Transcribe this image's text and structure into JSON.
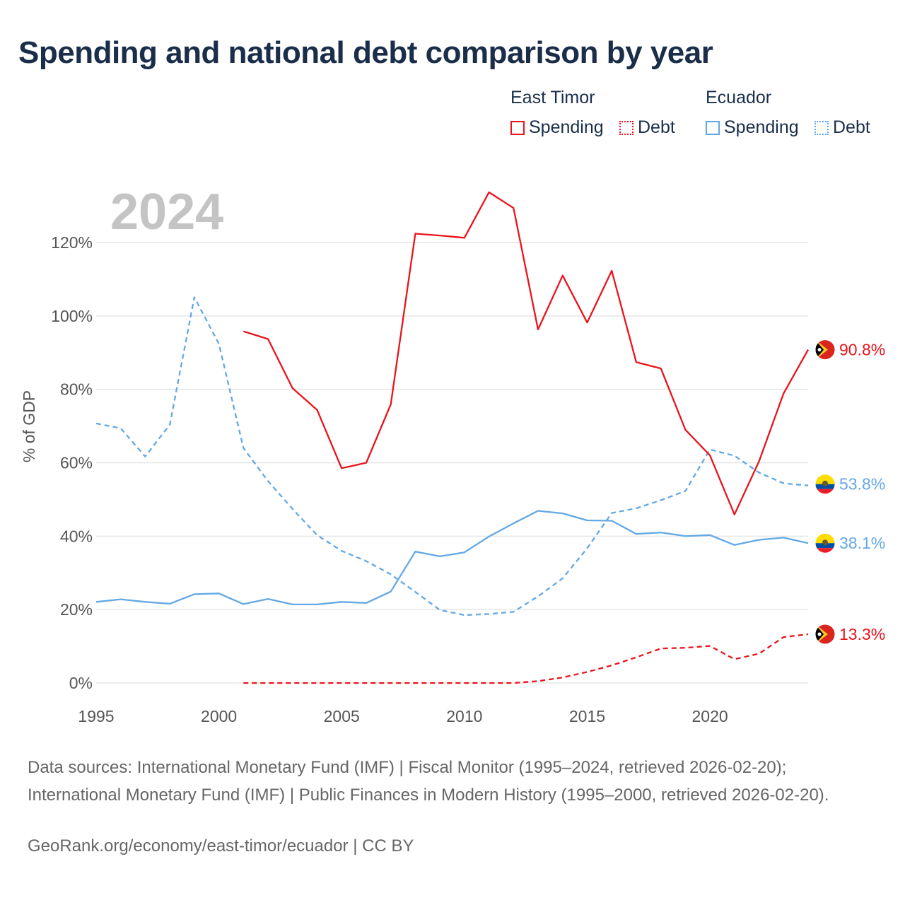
{
  "title": "Spending and national debt comparison by year",
  "legend": {
    "groups": [
      {
        "name": "East Timor",
        "items": [
          {
            "label": "Spending",
            "style": "solid",
            "color": "#e8141c"
          },
          {
            "label": "Debt",
            "style": "dotted",
            "color": "#e8141c"
          }
        ]
      },
      {
        "name": "Ecuador",
        "items": [
          {
            "label": "Spending",
            "style": "solid",
            "color": "#63a8e4"
          },
          {
            "label": "Debt",
            "style": "dotted",
            "color": "#63a8e4"
          }
        ]
      }
    ]
  },
  "footer": {
    "sources": "Data sources: International Monetary Fund (IMF) | Fiscal Monitor (1995–2024, retrieved 2026-02-20); International Monetary Fund (IMF) | Public Finances in Modern History (1995–2000, retrieved 2026-02-20).",
    "link": "GeoRank.org/economy/east-timor/ecuador | CC BY"
  },
  "chart_data": {
    "type": "line",
    "title": "Spending and national debt comparison by year",
    "year_label": "2024",
    "xlabel": "",
    "ylabel": "% of GDP",
    "xlim": [
      1995,
      2024
    ],
    "ylim": [
      0,
      120
    ],
    "xticks": [
      1995,
      2000,
      2005,
      2010,
      2015,
      2020
    ],
    "yticks": [
      0,
      20,
      40,
      60,
      80,
      100,
      120
    ],
    "ytick_labels": [
      "0%",
      "20%",
      "40%",
      "60%",
      "80%",
      "100%",
      "120%"
    ],
    "grid": true,
    "series": [
      {
        "name": "East Timor Spending",
        "country": "East Timor",
        "metric": "Spending",
        "color": "#e8141c",
        "dash": "solid",
        "end_label": "90.8%",
        "x": [
          2001,
          2002,
          2003,
          2004,
          2005,
          2006,
          2007,
          2008,
          2009,
          2010,
          2011,
          2012,
          2013,
          2014,
          2015,
          2016,
          2017,
          2018,
          2019,
          2020,
          2021,
          2022,
          2023,
          2024
        ],
        "values": [
          95.8,
          93.7,
          80.3,
          74.4,
          58.5,
          60.0,
          75.9,
          122.4,
          121.9,
          121.3,
          133.7,
          129.4,
          96.3,
          111.0,
          98.2,
          112.3,
          87.4,
          85.7,
          69.0,
          62.0,
          45.9,
          60.4,
          78.9,
          90.8
        ]
      },
      {
        "name": "East Timor Debt",
        "country": "East Timor",
        "metric": "Debt",
        "color": "#e8141c",
        "dash": "dashed",
        "end_label": "13.3%",
        "x": [
          2001,
          2002,
          2003,
          2004,
          2005,
          2006,
          2007,
          2008,
          2009,
          2010,
          2011,
          2012,
          2013,
          2014,
          2015,
          2016,
          2017,
          2018,
          2019,
          2020,
          2021,
          2022,
          2023,
          2024
        ],
        "values": [
          0,
          0,
          0,
          0,
          0,
          0,
          0,
          0,
          0,
          0,
          0,
          0,
          0.5,
          1.5,
          3.0,
          4.8,
          7.0,
          9.4,
          9.6,
          10.1,
          6.5,
          8.0,
          12.5,
          13.3
        ]
      },
      {
        "name": "Ecuador Spending",
        "country": "Ecuador",
        "metric": "Spending",
        "color": "#63a8e4",
        "dash": "solid",
        "end_label": "38.1%",
        "x": [
          1995,
          1996,
          1997,
          1998,
          1999,
          2000,
          2001,
          2002,
          2003,
          2004,
          2005,
          2006,
          2007,
          2008,
          2009,
          2010,
          2011,
          2012,
          2013,
          2014,
          2015,
          2016,
          2017,
          2018,
          2019,
          2020,
          2021,
          2022,
          2023,
          2024
        ],
        "values": [
          22.1,
          22.8,
          22.1,
          21.6,
          24.2,
          24.4,
          21.5,
          22.9,
          21.4,
          21.4,
          22.1,
          21.8,
          24.9,
          35.8,
          34.5,
          35.6,
          39.9,
          43.5,
          46.9,
          46.2,
          44.3,
          44.2,
          40.6,
          41.0,
          40.0,
          40.3,
          37.6,
          39.0,
          39.6,
          38.1
        ]
      },
      {
        "name": "Ecuador Debt",
        "country": "Ecuador",
        "metric": "Debt",
        "color": "#63a8e4",
        "dash": "dashed",
        "end_label": "53.8%",
        "x": [
          1995,
          1996,
          1997,
          1998,
          1999,
          2000,
          2001,
          2002,
          2003,
          2004,
          2005,
          2006,
          2007,
          2008,
          2009,
          2010,
          2011,
          2012,
          2013,
          2014,
          2015,
          2016,
          2017,
          2018,
          2019,
          2020,
          2021,
          2022,
          2023,
          2024
        ],
        "values": [
          70.7,
          69.4,
          61.7,
          70.4,
          105.1,
          92.4,
          64.0,
          55.0,
          47.4,
          40.3,
          36.0,
          33.2,
          29.6,
          24.8,
          19.9,
          18.5,
          18.8,
          19.4,
          23.6,
          28.5,
          36.7,
          46.3,
          47.6,
          49.8,
          52.3,
          63.6,
          61.9,
          57.3,
          54.4,
          53.8
        ]
      }
    ]
  }
}
